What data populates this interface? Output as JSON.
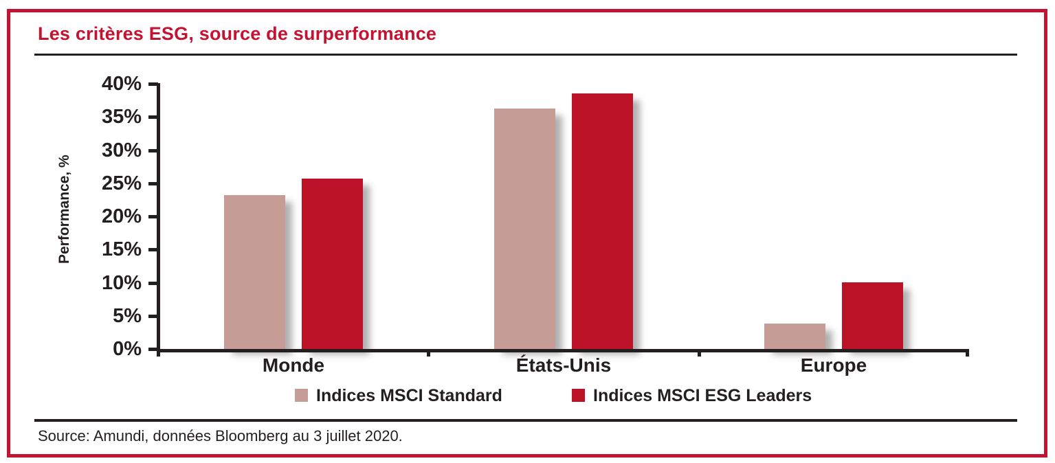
{
  "header": {
    "title": "Les critères ESG, source de surperformance"
  },
  "chart_data": {
    "type": "bar",
    "title": "Les critères ESG, source de surperformance",
    "categories": [
      "Monde",
      "États-Unis",
      "Europe"
    ],
    "series": [
      {
        "name": "Indices MSCI Standard",
        "color": "#C69C97",
        "values": [
          23.2,
          36.3,
          3.8
        ]
      },
      {
        "name": "Indices MSCI ESG Leaders",
        "color": "#BB1228",
        "values": [
          25.7,
          38.5,
          10.0
        ]
      }
    ],
    "xlabel": "",
    "ylabel": "Performance, %",
    "ylim": [
      0,
      40
    ],
    "ytick_step": 5,
    "ytick_labels": [
      "0%",
      "5%",
      "10%",
      "15%",
      "20%",
      "25%",
      "30%",
      "35%",
      "40%"
    ],
    "grid": false,
    "legend_position": "bottom"
  },
  "footer": {
    "source": "Source: Amundi, données Bloomberg au 3 juillet 2020."
  },
  "colors": {
    "panel_border": "#C21432",
    "title_red": "#C41331",
    "axis_black": "#231F20",
    "bar_standard": "#C69C97",
    "bar_esg_leaders": "#BB1228"
  }
}
